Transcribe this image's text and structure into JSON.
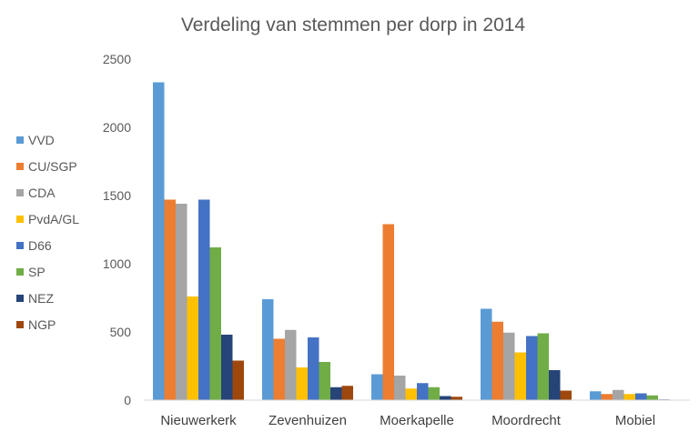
{
  "chart_data": {
    "type": "bar",
    "title": "Verdeling van stemmen per dorp in 2014",
    "xlabel": "",
    "ylabel": "",
    "ylim": [
      0,
      2500
    ],
    "yticks": [
      0,
      500,
      1000,
      1500,
      2000,
      2500
    ],
    "grid": false,
    "legend_position": "left",
    "categories": [
      "Nieuwerkerk",
      "Zevenhuizen",
      "Moerkapelle",
      "Moordrecht",
      "Mobiel"
    ],
    "series": [
      {
        "name": "VVD",
        "color": "#5B9BD5",
        "values": [
          2330,
          740,
          190,
          670,
          65
        ]
      },
      {
        "name": "CU/SGP",
        "color": "#ED7D31",
        "values": [
          1470,
          450,
          1290,
          575,
          45
        ]
      },
      {
        "name": "CDA",
        "color": "#A5A5A5",
        "values": [
          1440,
          515,
          180,
          495,
          75
        ]
      },
      {
        "name": "PvdA/GL",
        "color": "#FFC000",
        "values": [
          760,
          240,
          85,
          350,
          45
        ]
      },
      {
        "name": "D66",
        "color": "#4472C4",
        "values": [
          1470,
          460,
          125,
          470,
          50
        ]
      },
      {
        "name": "SP",
        "color": "#70AD47",
        "values": [
          1120,
          280,
          95,
          490,
          35
        ]
      },
      {
        "name": "NEZ",
        "color": "#264478",
        "values": [
          480,
          95,
          30,
          220,
          5
        ]
      },
      {
        "name": "NGP",
        "color": "#9E480E",
        "values": [
          290,
          105,
          25,
          70,
          0
        ]
      }
    ]
  }
}
